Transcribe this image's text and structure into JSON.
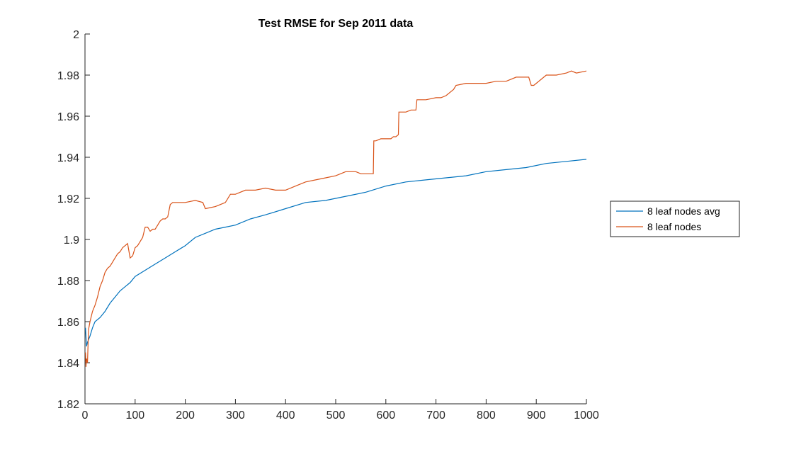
{
  "chart_data": {
    "type": "line",
    "title": "Test RMSE for Sep 2011 data",
    "xlabel": "",
    "ylabel": "",
    "xlim": [
      0,
      1000
    ],
    "ylim": [
      1.82,
      2
    ],
    "x_ticks": [
      0,
      100,
      200,
      300,
      400,
      500,
      600,
      700,
      800,
      900,
      1000
    ],
    "x_tick_labels": [
      "0",
      "100",
      "200",
      "300",
      "400",
      "500",
      "600",
      "700",
      "800",
      "900",
      "1000"
    ],
    "y_ticks": [
      1.82,
      1.84,
      1.86,
      1.88,
      1.9,
      1.92,
      1.94,
      1.96,
      1.98,
      2
    ],
    "y_tick_labels": [
      "1.82",
      "1.84",
      "1.86",
      "1.88",
      "1.9",
      "1.92",
      "1.94",
      "1.96",
      "1.98",
      "2"
    ],
    "grid": false,
    "legend_position": "outside-right",
    "series": [
      {
        "name": "8 leaf nodes avg",
        "color": "#0072BD",
        "x": [
          1,
          3,
          5,
          10,
          15,
          20,
          30,
          40,
          50,
          60,
          70,
          80,
          90,
          100,
          120,
          140,
          160,
          180,
          200,
          220,
          240,
          260,
          280,
          300,
          330,
          360,
          400,
          440,
          480,
          520,
          560,
          600,
          640,
          680,
          720,
          760,
          800,
          840,
          880,
          920,
          960,
          1000
        ],
        "y": [
          1.857,
          1.848,
          1.85,
          1.853,
          1.857,
          1.86,
          1.862,
          1.865,
          1.869,
          1.872,
          1.875,
          1.877,
          1.879,
          1.882,
          1.885,
          1.888,
          1.891,
          1.894,
          1.897,
          1.901,
          1.903,
          1.905,
          1.906,
          1.907,
          1.91,
          1.912,
          1.915,
          1.918,
          1.919,
          1.921,
          1.923,
          1.926,
          1.928,
          1.929,
          1.93,
          1.931,
          1.933,
          1.934,
          1.935,
          1.937,
          1.938,
          1.939
        ]
      },
      {
        "name": "8 leaf nodes",
        "color": "#D95319",
        "x": [
          1,
          2,
          3,
          5,
          7,
          10,
          15,
          20,
          25,
          30,
          35,
          40,
          45,
          50,
          55,
          60,
          65,
          70,
          75,
          80,
          85,
          90,
          95,
          100,
          105,
          110,
          115,
          120,
          125,
          130,
          135,
          140,
          145,
          150,
          155,
          160,
          165,
          170,
          175,
          180,
          190,
          200,
          220,
          235,
          240,
          260,
          270,
          280,
          290,
          300,
          320,
          340,
          360,
          380,
          400,
          420,
          440,
          460,
          480,
          500,
          520,
          540,
          550,
          560,
          570,
          575,
          576,
          580,
          590,
          600,
          610,
          615,
          620,
          625,
          626,
          630,
          640,
          650,
          660,
          662,
          680,
          700,
          710,
          720,
          730,
          735,
          740,
          760,
          780,
          800,
          820,
          840,
          860,
          880,
          885,
          890,
          895,
          900,
          920,
          940,
          960,
          970,
          980,
          1000
        ],
        "y": [
          1.845,
          1.838,
          1.842,
          1.84,
          1.856,
          1.86,
          1.865,
          1.868,
          1.872,
          1.877,
          1.88,
          1.884,
          1.886,
          1.887,
          1.889,
          1.891,
          1.893,
          1.894,
          1.896,
          1.897,
          1.898,
          1.891,
          1.892,
          1.896,
          1.897,
          1.899,
          1.901,
          1.906,
          1.906,
          1.904,
          1.905,
          1.905,
          1.907,
          1.909,
          1.91,
          1.91,
          1.911,
          1.917,
          1.918,
          1.918,
          1.918,
          1.918,
          1.919,
          1.918,
          1.915,
          1.916,
          1.917,
          1.918,
          1.922,
          1.922,
          1.924,
          1.924,
          1.925,
          1.924,
          1.924,
          1.926,
          1.928,
          1.929,
          1.93,
          1.931,
          1.933,
          1.933,
          1.932,
          1.932,
          1.932,
          1.932,
          1.948,
          1.948,
          1.949,
          1.949,
          1.949,
          1.95,
          1.95,
          1.951,
          1.962,
          1.962,
          1.962,
          1.963,
          1.963,
          1.968,
          1.968,
          1.969,
          1.969,
          1.97,
          1.972,
          1.973,
          1.975,
          1.976,
          1.976,
          1.976,
          1.977,
          1.977,
          1.979,
          1.979,
          1.979,
          1.975,
          1.975,
          1.976,
          1.98,
          1.98,
          1.981,
          1.982,
          1.981,
          1.982
        ]
      }
    ]
  }
}
